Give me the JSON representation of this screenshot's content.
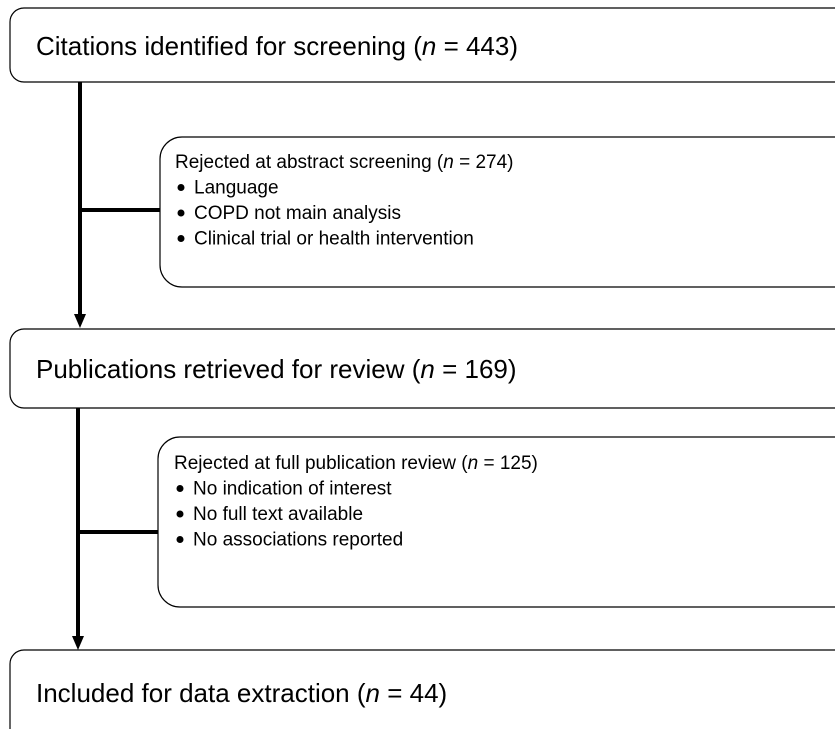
{
  "steps": [
    {
      "text": "Citations identified for screening (",
      "var": "n",
      "rest": " = 443)"
    },
    {
      "text": "Publications retrieved for review (",
      "var": "n",
      "rest": " = 169)"
    },
    {
      "text": "Included for data extraction (",
      "var": "n",
      "rest": " = 44)"
    }
  ],
  "exclusions": [
    {
      "text": "Rejected at abstract screening (",
      "var": "n",
      "rest": " = 274)",
      "items": [
        "Language",
        "COPD not main analysis",
        "Clinical trial or health intervention"
      ]
    },
    {
      "text": "Rejected at full publication review (",
      "var": "n",
      "rest": " = 125)",
      "items": [
        "No indication of interest",
        "No full text available",
        "No associations reported"
      ]
    }
  ]
}
